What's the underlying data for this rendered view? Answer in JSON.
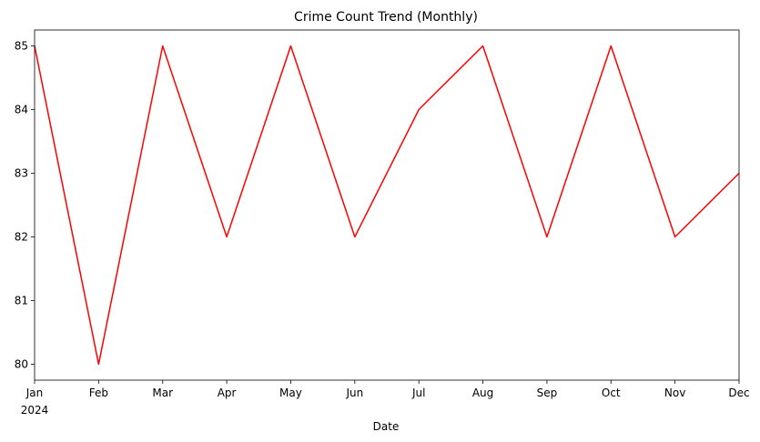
{
  "chart_data": {
    "type": "line",
    "title": "Crime Count Trend (Monthly)",
    "xlabel": "Date",
    "ylabel": "",
    "x_year_label": "2024",
    "categories": [
      "Jan",
      "Feb",
      "Mar",
      "Apr",
      "May",
      "Jun",
      "Jul",
      "Aug",
      "Sep",
      "Oct",
      "Nov",
      "Dec"
    ],
    "series": [
      {
        "values": [
          85,
          80,
          85,
          82,
          85,
          82,
          84,
          85,
          82,
          85,
          82,
          83
        ]
      }
    ],
    "ylim": [
      79.75,
      85.25
    ],
    "yticks": [
      80,
      81,
      82,
      83,
      84,
      85
    ],
    "grid": false,
    "legend": "none",
    "line_color": "#ff0000"
  }
}
